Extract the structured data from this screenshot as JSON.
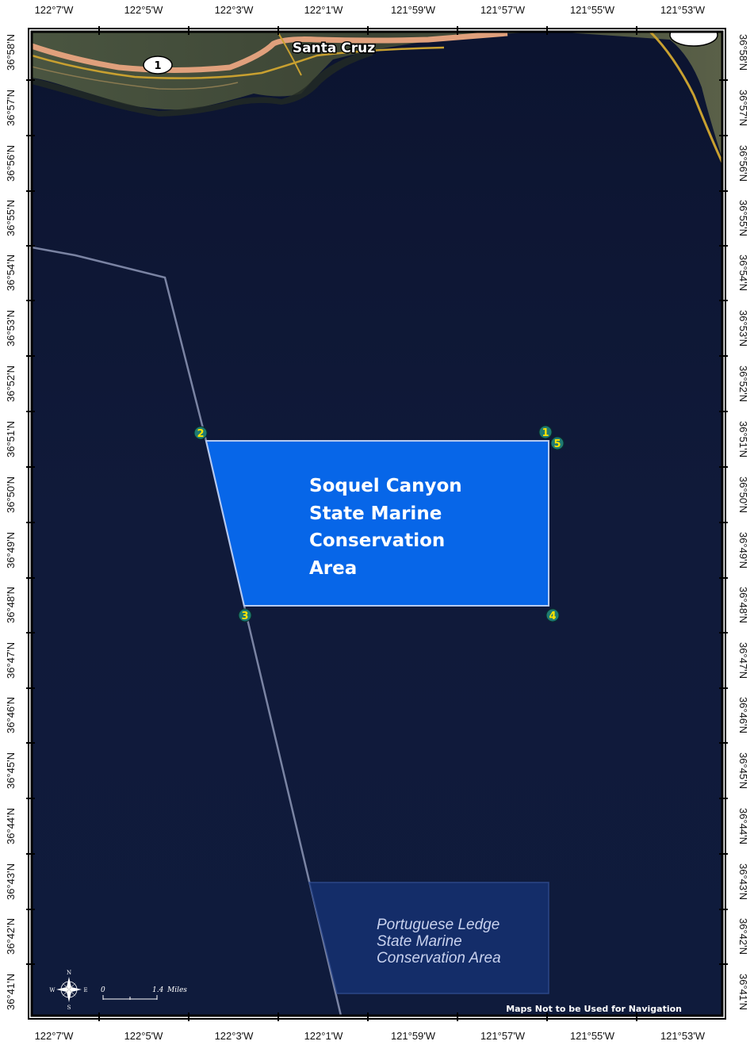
{
  "map": {
    "city_label": "Santa Cruz",
    "highway_shield": "1",
    "disclaimer": "Maps Not to be Used for Navigation",
    "colors": {
      "ocean": "#0f1836",
      "land": "#3c4434",
      "primary_mpa_fill": "#0766e8",
      "secondary_mpa_fill": "#15306e",
      "boundary_line": "#9aa6c4",
      "point_marker_fill": "#1f7a73",
      "point_marker_text": "#ffe400",
      "road": "#e0a07c",
      "minor_road": "#c8a030"
    },
    "top_lon_labels": [
      "122°7'W",
      "122°5'W",
      "122°3'W",
      "122°1'W",
      "121°59'W",
      "121°57'W",
      "121°55'W",
      "121°53'W"
    ],
    "bottom_lon_labels": [
      "122°7'W",
      "122°5'W",
      "122°3'W",
      "122°1'W",
      "121°59'W",
      "121°57'W",
      "121°55'W",
      "121°53'W"
    ],
    "left_lat_labels": [
      "36°58'N",
      "36°57'N",
      "36°56'N",
      "36°55'N",
      "36°54'N",
      "36°53'N",
      "36°52'N",
      "36°51'N",
      "36°50'N",
      "36°49'N",
      "36°48'N",
      "36°47'N",
      "36°46'N",
      "36°45'N",
      "36°44'N",
      "36°43'N",
      "36°42'N",
      "36°41'N"
    ],
    "right_lat_labels": [
      "36°58'N",
      "36°57'N",
      "36°56'N",
      "36°55'N",
      "36°54'N",
      "36°53'N",
      "36°52'N",
      "36°51'N",
      "36°50'N",
      "36°49'N",
      "36°48'N",
      "36°47'N",
      "36°46'N",
      "36°45'N",
      "36°44'N",
      "36°43'N",
      "36°42'N",
      "36°41'N"
    ],
    "primary_mpa": {
      "name_lines": [
        "Soquel Canyon",
        "State Marine",
        "Conservation",
        "Area"
      ]
    },
    "secondary_mpa": {
      "name_lines": [
        "Portuguese Ledge",
        "State Marine",
        "Conservation Area"
      ]
    },
    "points": [
      {
        "label": "1"
      },
      {
        "label": "2"
      },
      {
        "label": "3"
      },
      {
        "label": "4"
      },
      {
        "label": "5"
      }
    ],
    "scale_bar": {
      "start_label": "0",
      "end_label": "1.4",
      "unit": "Miles"
    },
    "compass": {
      "n": "N",
      "s": "S",
      "e": "E",
      "w": "W"
    }
  }
}
